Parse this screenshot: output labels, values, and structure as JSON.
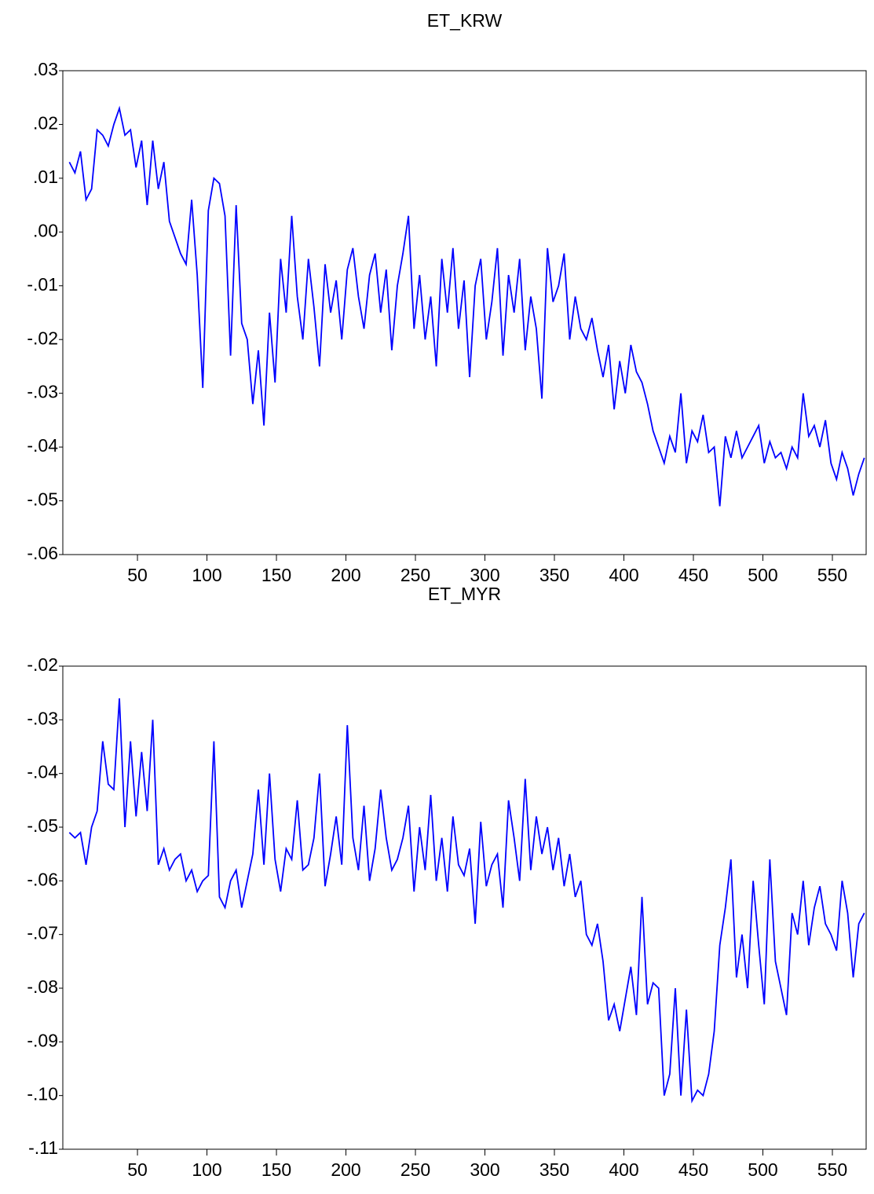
{
  "chart_data": [
    {
      "type": "line",
      "title": "ET_KRW",
      "x": [
        1,
        5,
        9,
        13,
        17,
        21,
        25,
        29,
        33,
        37,
        41,
        45,
        49,
        53,
        57,
        61,
        65,
        69,
        73,
        77,
        81,
        85,
        89,
        93,
        97,
        101,
        105,
        109,
        113,
        117,
        121,
        125,
        129,
        133,
        137,
        141,
        145,
        149,
        153,
        157,
        161,
        165,
        169,
        173,
        177,
        181,
        185,
        189,
        193,
        197,
        201,
        205,
        209,
        213,
        217,
        221,
        225,
        229,
        233,
        237,
        241,
        245,
        249,
        253,
        257,
        261,
        265,
        269,
        273,
        277,
        281,
        285,
        289,
        293,
        297,
        301,
        305,
        309,
        313,
        317,
        321,
        325,
        329,
        333,
        337,
        341,
        345,
        349,
        353,
        357,
        361,
        365,
        369,
        373,
        377,
        381,
        385,
        389,
        393,
        397,
        401,
        405,
        409,
        413,
        417,
        421,
        425,
        429,
        433,
        437,
        441,
        445,
        449,
        453,
        457,
        461,
        465,
        469,
        473,
        477,
        481,
        485,
        489,
        493,
        497,
        501,
        505,
        509,
        513,
        517,
        521,
        525,
        529,
        533,
        537,
        541,
        545,
        549,
        553,
        557,
        561,
        565,
        569,
        573
      ],
      "series": [
        {
          "name": "ET_KRW",
          "color": "#0000ff",
          "values": [
            0.013,
            0.011,
            0.015,
            0.006,
            0.008,
            0.019,
            0.018,
            0.016,
            0.02,
            0.023,
            0.018,
            0.019,
            0.012,
            0.017,
            0.005,
            0.017,
            0.008,
            0.013,
            0.002,
            -0.001,
            -0.004,
            -0.006,
            0.006,
            -0.008,
            -0.029,
            0.004,
            0.01,
            0.009,
            0.003,
            -0.023,
            0.005,
            -0.017,
            -0.02,
            -0.032,
            -0.022,
            -0.036,
            -0.015,
            -0.028,
            -0.005,
            -0.015,
            0.003,
            -0.012,
            -0.02,
            -0.005,
            -0.014,
            -0.025,
            -0.006,
            -0.015,
            -0.009,
            -0.02,
            -0.007,
            -0.003,
            -0.012,
            -0.018,
            -0.008,
            -0.004,
            -0.015,
            -0.007,
            -0.022,
            -0.01,
            -0.004,
            0.003,
            -0.018,
            -0.008,
            -0.02,
            -0.012,
            -0.025,
            -0.005,
            -0.015,
            -0.003,
            -0.018,
            -0.009,
            -0.027,
            -0.01,
            -0.005,
            -0.02,
            -0.013,
            -0.003,
            -0.023,
            -0.008,
            -0.015,
            -0.005,
            -0.022,
            -0.012,
            -0.018,
            -0.031,
            -0.003,
            -0.013,
            -0.01,
            -0.004,
            -0.02,
            -0.012,
            -0.018,
            -0.02,
            -0.016,
            -0.022,
            -0.027,
            -0.021,
            -0.033,
            -0.024,
            -0.03,
            -0.021,
            -0.026,
            -0.028,
            -0.032,
            -0.037,
            -0.04,
            -0.043,
            -0.038,
            -0.041,
            -0.03,
            -0.043,
            -0.037,
            -0.039,
            -0.034,
            -0.041,
            -0.04,
            -0.051,
            -0.038,
            -0.042,
            -0.037,
            -0.042,
            -0.04,
            -0.038,
            -0.036,
            -0.043,
            -0.039,
            -0.042,
            -0.041,
            -0.044,
            -0.04,
            -0.042,
            -0.03,
            -0.038,
            -0.036,
            -0.04,
            -0.035,
            -0.043,
            -0.046,
            -0.041,
            -0.044,
            -0.049,
            -0.045,
            -0.042
          ]
        }
      ],
      "xlim": [
        -3.7,
        574.3
      ],
      "xticks": [
        50,
        100,
        150,
        200,
        250,
        300,
        350,
        400,
        450,
        500,
        550
      ],
      "ylim": [
        -0.06,
        0.03
      ],
      "yticks": [
        {
          "value": 0.03,
          "label": ".03"
        },
        {
          "value": 0.02,
          "label": ".02"
        },
        {
          "value": 0.01,
          "label": ".01"
        },
        {
          "value": 0,
          "label": ".00"
        },
        {
          "value": -0.01,
          "label": "-.01"
        },
        {
          "value": -0.02,
          "label": "-.02"
        },
        {
          "value": -0.03,
          "label": "-.03"
        },
        {
          "value": -0.04,
          "label": "-.04"
        },
        {
          "value": -0.05,
          "label": "-.05"
        },
        {
          "value": -0.06,
          "label": "-.06"
        }
      ]
    },
    {
      "type": "line",
      "title": "ET_MYR",
      "x": [
        1,
        5,
        9,
        13,
        17,
        21,
        25,
        29,
        33,
        37,
        41,
        45,
        49,
        53,
        57,
        61,
        65,
        69,
        73,
        77,
        81,
        85,
        89,
        93,
        97,
        101,
        105,
        109,
        113,
        117,
        121,
        125,
        129,
        133,
        137,
        141,
        145,
        149,
        153,
        157,
        161,
        165,
        169,
        173,
        177,
        181,
        185,
        189,
        193,
        197,
        201,
        205,
        209,
        213,
        217,
        221,
        225,
        229,
        233,
        237,
        241,
        245,
        249,
        253,
        257,
        261,
        265,
        269,
        273,
        277,
        281,
        285,
        289,
        293,
        297,
        301,
        305,
        309,
        313,
        317,
        321,
        325,
        329,
        333,
        337,
        341,
        345,
        349,
        353,
        357,
        361,
        365,
        369,
        373,
        377,
        381,
        385,
        389,
        393,
        397,
        401,
        405,
        409,
        413,
        417,
        421,
        425,
        429,
        433,
        437,
        441,
        445,
        449,
        453,
        457,
        461,
        465,
        469,
        473,
        477,
        481,
        485,
        489,
        493,
        497,
        501,
        505,
        509,
        513,
        517,
        521,
        525,
        529,
        533,
        537,
        541,
        545,
        549,
        553,
        557,
        561,
        565,
        569,
        573
      ],
      "series": [
        {
          "name": "ET_MYR",
          "color": "#0000ff",
          "values": [
            -0.051,
            -0.052,
            -0.051,
            -0.057,
            -0.05,
            -0.047,
            -0.034,
            -0.042,
            -0.043,
            -0.026,
            -0.05,
            -0.034,
            -0.048,
            -0.036,
            -0.047,
            -0.03,
            -0.057,
            -0.054,
            -0.058,
            -0.056,
            -0.055,
            -0.06,
            -0.058,
            -0.062,
            -0.06,
            -0.059,
            -0.034,
            -0.063,
            -0.065,
            -0.06,
            -0.058,
            -0.065,
            -0.06,
            -0.055,
            -0.043,
            -0.057,
            -0.04,
            -0.056,
            -0.062,
            -0.054,
            -0.056,
            -0.045,
            -0.058,
            -0.057,
            -0.052,
            -0.04,
            -0.061,
            -0.055,
            -0.048,
            -0.057,
            -0.031,
            -0.052,
            -0.058,
            -0.046,
            -0.06,
            -0.054,
            -0.043,
            -0.052,
            -0.058,
            -0.056,
            -0.052,
            -0.046,
            -0.062,
            -0.05,
            -0.058,
            -0.044,
            -0.06,
            -0.052,
            -0.062,
            -0.048,
            -0.057,
            -0.059,
            -0.054,
            -0.068,
            -0.049,
            -0.061,
            -0.057,
            -0.055,
            -0.065,
            -0.045,
            -0.052,
            -0.06,
            -0.041,
            -0.058,
            -0.048,
            -0.055,
            -0.05,
            -0.058,
            -0.052,
            -0.061,
            -0.055,
            -0.063,
            -0.06,
            -0.07,
            -0.072,
            -0.068,
            -0.075,
            -0.086,
            -0.083,
            -0.088,
            -0.082,
            -0.076,
            -0.085,
            -0.063,
            -0.083,
            -0.079,
            -0.08,
            -0.1,
            -0.096,
            -0.08,
            -0.1,
            -0.084,
            -0.101,
            -0.099,
            -0.1,
            -0.096,
            -0.088,
            -0.072,
            -0.065,
            -0.056,
            -0.078,
            -0.07,
            -0.08,
            -0.06,
            -0.072,
            -0.083,
            -0.056,
            -0.075,
            -0.08,
            -0.085,
            -0.066,
            -0.07,
            -0.06,
            -0.072,
            -0.065,
            -0.061,
            -0.068,
            -0.07,
            -0.073,
            -0.06,
            -0.066,
            -0.078,
            -0.068,
            -0.066
          ]
        }
      ],
      "xlim": [
        -3.7,
        574.3
      ],
      "xticks": [
        50,
        100,
        150,
        200,
        250,
        300,
        350,
        400,
        450,
        500,
        550
      ],
      "ylim": [
        -0.11,
        -0.02
      ],
      "yticks": [
        {
          "value": -0.02,
          "label": "-.02"
        },
        {
          "value": -0.03,
          "label": "-.03"
        },
        {
          "value": -0.04,
          "label": "-.04"
        },
        {
          "value": -0.05,
          "label": "-.05"
        },
        {
          "value": -0.06,
          "label": "-.06"
        },
        {
          "value": -0.07,
          "label": "-.07"
        },
        {
          "value": -0.08,
          "label": "-.08"
        },
        {
          "value": -0.09,
          "label": "-.09"
        },
        {
          "value": -0.1,
          "label": "-.10"
        },
        {
          "value": -0.11,
          "label": "-.11"
        }
      ]
    }
  ]
}
